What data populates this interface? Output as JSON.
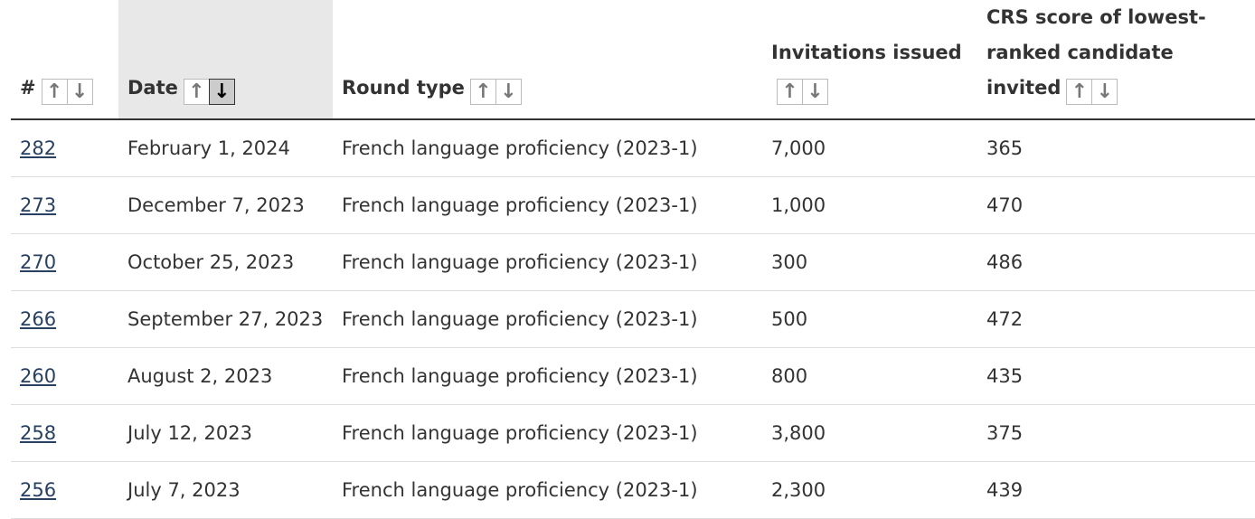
{
  "columns": [
    {
      "label": "#",
      "sort_up": "↑",
      "sort_down": "↓"
    },
    {
      "label": "Date",
      "active": "desc"
    },
    {
      "label": "Round type"
    },
    {
      "label": "Invitations issued"
    },
    {
      "label": "CRS score of lowest-ranked candidate invited"
    }
  ],
  "header": {
    "num": "#",
    "date": "Date",
    "round": "Round type",
    "inv": "Invitations issued",
    "crs": "CRS score of lowest-ranked candidate invited",
    "up": "🡅",
    "down": "🡇"
  },
  "rows": [
    {
      "num": "282",
      "date": "February 1, 2024",
      "round": "French language proficiency (2023-1)",
      "inv": "7,000",
      "crs": "365"
    },
    {
      "num": "273",
      "date": "December 7, 2023",
      "round": "French language proficiency (2023-1)",
      "inv": "1,000",
      "crs": "470"
    },
    {
      "num": "270",
      "date": "October 25, 2023",
      "round": "French language proficiency (2023-1)",
      "inv": "300",
      "crs": "486"
    },
    {
      "num": "266",
      "date": "September 27, 2023",
      "round": "French language proficiency (2023-1)",
      "inv": "500",
      "crs": "472"
    },
    {
      "num": "260",
      "date": "August 2, 2023",
      "round": "French language proficiency (2023-1)",
      "inv": "800",
      "crs": "435"
    },
    {
      "num": "258",
      "date": "July 12, 2023",
      "round": "French language proficiency (2023-1)",
      "inv": "3,800",
      "crs": "375"
    },
    {
      "num": "256",
      "date": "July 7, 2023",
      "round": "French language proficiency (2023-1)",
      "inv": "2,300",
      "crs": "439"
    }
  ]
}
